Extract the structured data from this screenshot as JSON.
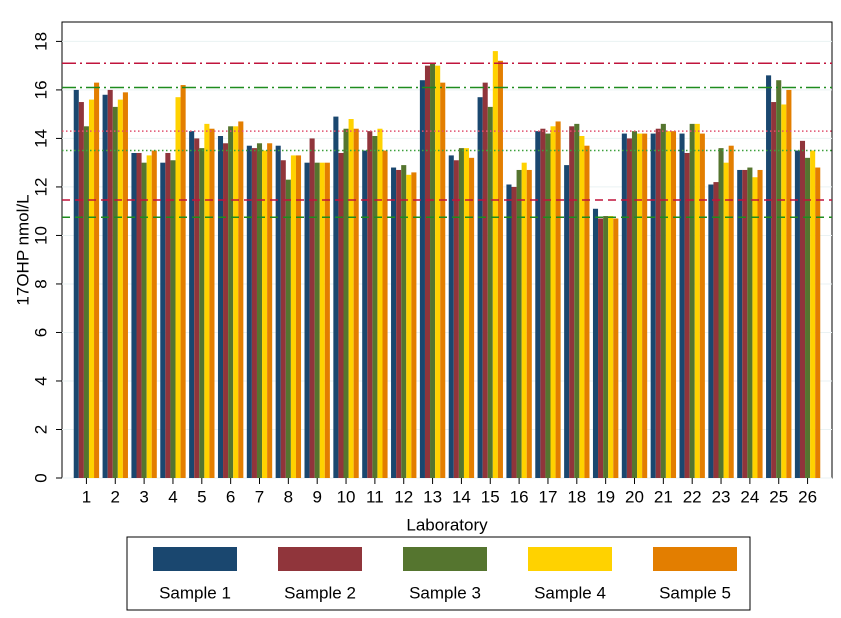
{
  "chart_data": {
    "type": "bar",
    "y_label": "17OHP nmol/L",
    "x_label": "Laboratory",
    "categories": [
      1,
      2,
      3,
      4,
      5,
      6,
      7,
      8,
      9,
      10,
      11,
      12,
      13,
      14,
      15,
      16,
      17,
      18,
      19,
      20,
      21,
      22,
      23,
      24,
      25,
      26
    ],
    "series": [
      {
        "name": "Sample 1",
        "color": "#1a476f",
        "values": [
          16.0,
          15.8,
          13.4,
          13.0,
          14.3,
          14.1,
          13.7,
          13.7,
          13.0,
          14.9,
          13.5,
          12.8,
          16.4,
          13.3,
          15.7,
          12.1,
          14.3,
          12.9,
          11.1,
          14.2,
          14.2,
          14.2,
          12.1,
          12.7,
          16.6,
          13.5
        ]
      },
      {
        "name": "Sample 2",
        "color": "#90353b",
        "values": [
          15.5,
          16.0,
          13.4,
          13.4,
          14.0,
          13.8,
          13.6,
          13.1,
          14.0,
          13.4,
          14.3,
          12.7,
          17.0,
          13.1,
          16.3,
          12.0,
          14.4,
          14.5,
          10.7,
          14.0,
          14.4,
          13.4,
          12.2,
          12.7,
          15.5,
          13.9
        ]
      },
      {
        "name": "Sample 3",
        "color": "#55752f",
        "values": [
          14.5,
          15.3,
          13.0,
          13.1,
          13.6,
          14.5,
          13.8,
          12.3,
          13.0,
          14.4,
          14.1,
          12.9,
          17.1,
          13.6,
          15.3,
          12.7,
          14.2,
          14.6,
          10.8,
          14.3,
          14.6,
          14.6,
          13.6,
          12.8,
          16.4,
          13.2
        ]
      },
      {
        "name": "Sample 4",
        "color": "#ffd200",
        "values": [
          15.6,
          15.6,
          13.3,
          15.7,
          14.6,
          14.5,
          13.5,
          13.3,
          13.0,
          14.8,
          14.4,
          12.5,
          17.0,
          13.6,
          17.6,
          13.0,
          14.5,
          14.1,
          10.8,
          14.2,
          14.3,
          14.6,
          13.0,
          12.4,
          15.4,
          13.5
        ]
      },
      {
        "name": "Sample 5",
        "color": "#e37e00",
        "values": [
          16.3,
          15.9,
          13.5,
          16.2,
          14.4,
          14.7,
          13.8,
          13.3,
          13.0,
          14.4,
          13.5,
          12.6,
          16.3,
          13.2,
          17.2,
          12.7,
          14.7,
          13.7,
          10.7,
          14.2,
          14.3,
          14.2,
          13.7,
          12.7,
          16.0,
          12.8
        ]
      }
    ],
    "ylim": [
      0,
      18.8
    ],
    "yticks": [
      0,
      2,
      4,
      6,
      8,
      10,
      12,
      14,
      16,
      18
    ],
    "grid": true,
    "reference_lines": [
      {
        "value": 17.1,
        "color": "#c0143c",
        "style": "dashdot"
      },
      {
        "value": 16.1,
        "color": "#1e8c1e",
        "style": "dashdot"
      },
      {
        "value": 14.3,
        "color": "#e0506e",
        "style": "dotted"
      },
      {
        "value": 13.5,
        "color": "#3ca03c",
        "style": "dotted"
      },
      {
        "value": 11.46,
        "color": "#c0143c",
        "style": "dashed"
      },
      {
        "value": 10.75,
        "color": "#1e8c1e",
        "style": "dashed"
      }
    ],
    "legend": "bottom"
  }
}
